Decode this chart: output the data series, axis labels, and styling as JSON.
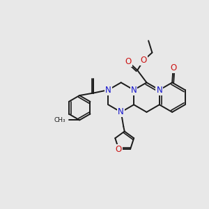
{
  "bg_color": "#e8e8e8",
  "bond_color": "#1a1a1a",
  "bond_width": 1.4,
  "atom_colors": {
    "N": "#1414cc",
    "O": "#cc1414"
  },
  "font_size_atom": 8.5
}
